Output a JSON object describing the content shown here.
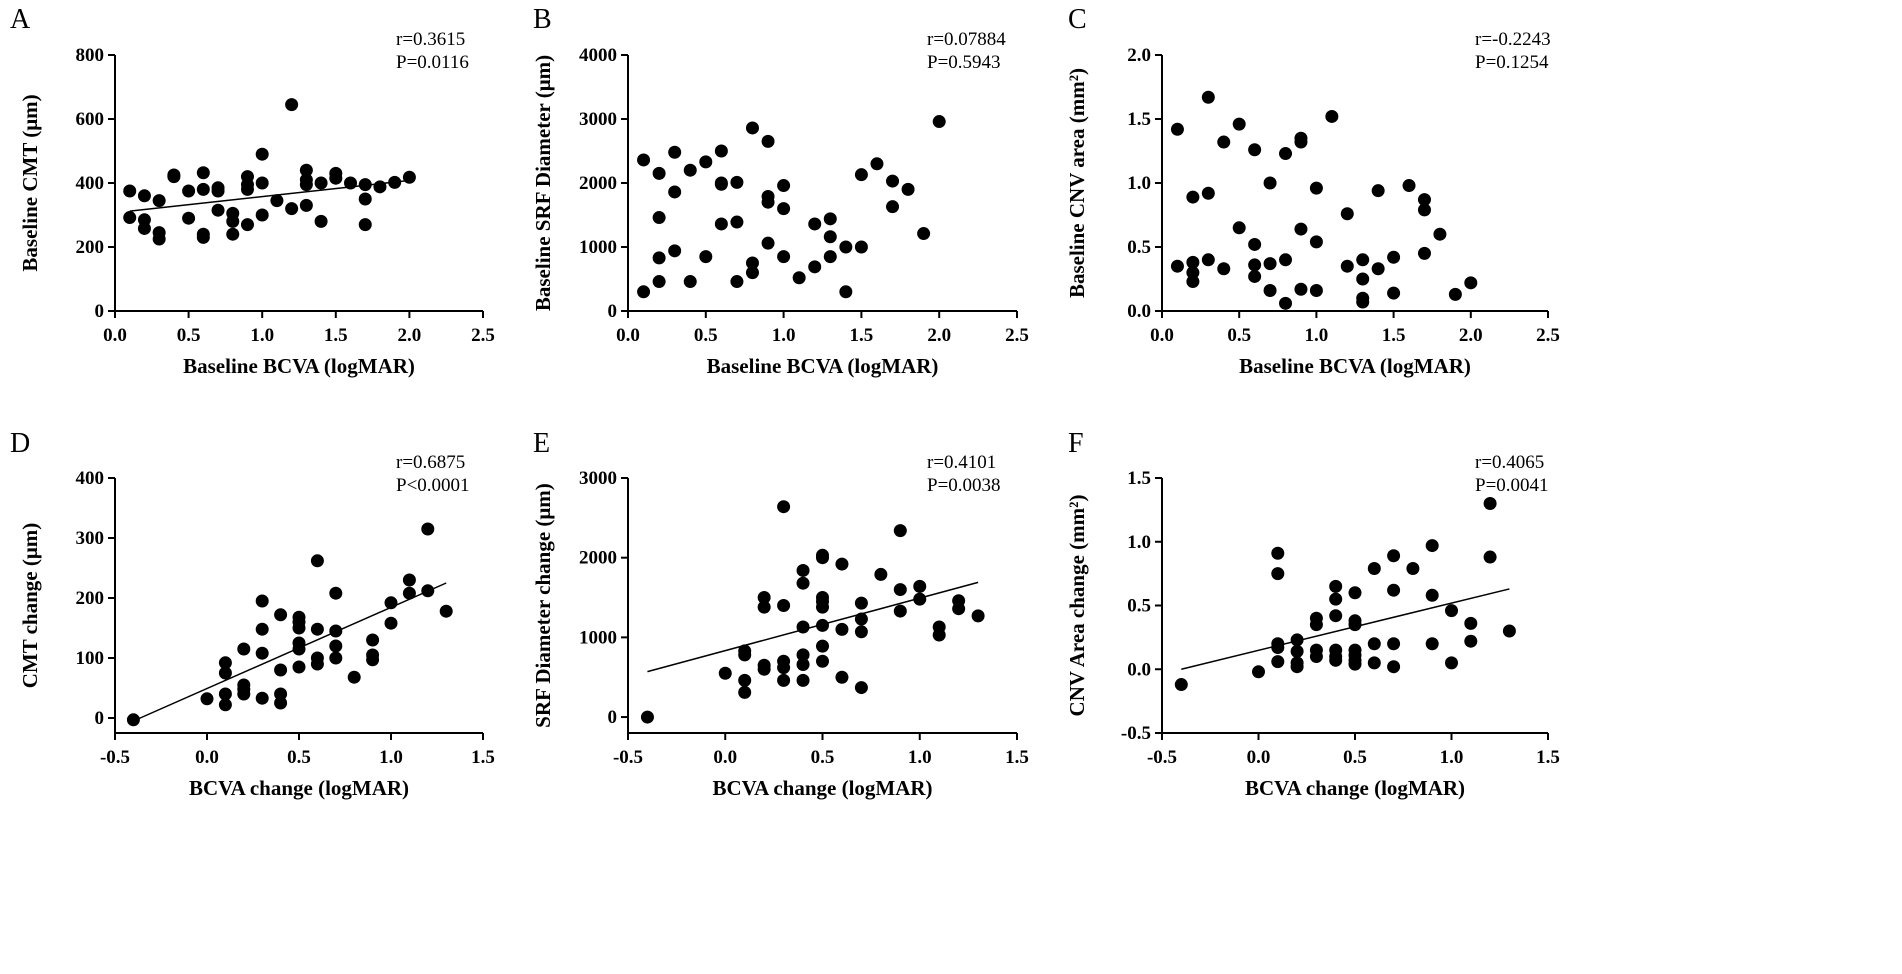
{
  "figure": {
    "panels": [
      "A",
      "B",
      "C",
      "D",
      "E",
      "F"
    ]
  },
  "chart_data": [
    {
      "panel": "A",
      "type": "scatter",
      "xlabel": "Baseline BCVA (logMAR)",
      "ylabel": "Baseline CMT (μm)",
      "xlim": [
        0,
        2.5
      ],
      "ylim": [
        0,
        800
      ],
      "xticks": [
        "0.0",
        "0.5",
        "1.0",
        "1.5",
        "2.0",
        "2.5"
      ],
      "yticks": [
        "0",
        "200",
        "400",
        "600",
        "800"
      ],
      "stats": [
        "r=0.3615",
        "P=0.0116"
      ],
      "fit_line": [
        [
          0.1,
          312
        ],
        [
          2.0,
          408
        ]
      ],
      "points": [
        [
          0.1,
          375
        ],
        [
          0.1,
          292
        ],
        [
          0.2,
          360
        ],
        [
          0.2,
          285
        ],
        [
          0.2,
          258
        ],
        [
          0.3,
          345
        ],
        [
          0.3,
          245
        ],
        [
          0.3,
          225
        ],
        [
          0.4,
          425
        ],
        [
          0.4,
          420
        ],
        [
          0.5,
          375
        ],
        [
          0.5,
          290
        ],
        [
          0.6,
          432
        ],
        [
          0.6,
          380
        ],
        [
          0.6,
          240
        ],
        [
          0.6,
          230
        ],
        [
          0.7,
          385
        ],
        [
          0.7,
          375
        ],
        [
          0.7,
          315
        ],
        [
          0.8,
          305
        ],
        [
          0.8,
          280
        ],
        [
          0.8,
          240
        ],
        [
          0.9,
          420
        ],
        [
          0.9,
          395
        ],
        [
          0.9,
          380
        ],
        [
          0.9,
          270
        ],
        [
          1.0,
          490
        ],
        [
          1.0,
          400
        ],
        [
          1.0,
          300
        ],
        [
          1.1,
          345
        ],
        [
          1.2,
          645
        ],
        [
          1.2,
          320
        ],
        [
          1.3,
          440
        ],
        [
          1.3,
          410
        ],
        [
          1.3,
          395
        ],
        [
          1.3,
          330
        ],
        [
          1.4,
          400
        ],
        [
          1.4,
          280
        ],
        [
          1.5,
          430
        ],
        [
          1.5,
          415
        ],
        [
          1.6,
          400
        ],
        [
          1.7,
          395
        ],
        [
          1.7,
          350
        ],
        [
          1.7,
          270
        ],
        [
          1.8,
          388
        ],
        [
          1.9,
          402
        ],
        [
          2.0,
          418
        ]
      ]
    },
    {
      "panel": "B",
      "type": "scatter",
      "xlabel": "Baseline BCVA (logMAR)",
      "ylabel": "Baseline SRF Diameter (μm)",
      "xlim": [
        0,
        2.5
      ],
      "ylim": [
        0,
        4000
      ],
      "xticks": [
        "0.0",
        "0.5",
        "1.0",
        "1.5",
        "2.0",
        "2.5"
      ],
      "yticks": [
        "0",
        "1000",
        "2000",
        "3000",
        "4000"
      ],
      "stats": [
        "r=0.07884",
        "P=0.5943"
      ],
      "fit_line": null,
      "points": [
        [
          0.1,
          2360
        ],
        [
          0.1,
          300
        ],
        [
          0.2,
          2150
        ],
        [
          0.2,
          1460
        ],
        [
          0.2,
          830
        ],
        [
          0.2,
          460
        ],
        [
          0.3,
          2480
        ],
        [
          0.3,
          1860
        ],
        [
          0.3,
          940
        ],
        [
          0.4,
          2200
        ],
        [
          0.4,
          460
        ],
        [
          0.5,
          2330
        ],
        [
          0.5,
          850
        ],
        [
          0.6,
          2500
        ],
        [
          0.6,
          2000
        ],
        [
          0.6,
          1980
        ],
        [
          0.6,
          1360
        ],
        [
          0.7,
          2010
        ],
        [
          0.7,
          1390
        ],
        [
          0.7,
          460
        ],
        [
          0.8,
          2860
        ],
        [
          0.8,
          750
        ],
        [
          0.8,
          600
        ],
        [
          0.9,
          2650
        ],
        [
          0.9,
          1790
        ],
        [
          0.9,
          1700
        ],
        [
          0.9,
          1060
        ],
        [
          1.0,
          1960
        ],
        [
          1.0,
          1600
        ],
        [
          1.0,
          850
        ],
        [
          1.1,
          520
        ],
        [
          1.2,
          1360
        ],
        [
          1.2,
          690
        ],
        [
          1.3,
          1440
        ],
        [
          1.3,
          1160
        ],
        [
          1.3,
          850
        ],
        [
          1.4,
          1000
        ],
        [
          1.4,
          300
        ],
        [
          1.5,
          2130
        ],
        [
          1.5,
          1000
        ],
        [
          1.6,
          2300
        ],
        [
          1.7,
          2030
        ],
        [
          1.7,
          1630
        ],
        [
          1.8,
          1900
        ],
        [
          1.9,
          1210
        ],
        [
          2.0,
          2960
        ]
      ]
    },
    {
      "panel": "C",
      "type": "scatter",
      "xlabel": "Baseline BCVA (logMAR)",
      "ylabel": "Baseline CNV area (mm²)",
      "xlim": [
        0,
        2.5
      ],
      "ylim": [
        0,
        2.0
      ],
      "xticks": [
        "0.0",
        "0.5",
        "1.0",
        "1.5",
        "2.0",
        "2.5"
      ],
      "yticks": [
        "0.0",
        "0.5",
        "1.0",
        "1.5",
        "2.0"
      ],
      "stats": [
        "r=-0.2243",
        "P=0.1254"
      ],
      "fit_line": null,
      "points": [
        [
          0.1,
          1.42
        ],
        [
          0.1,
          0.35
        ],
        [
          0.2,
          0.89
        ],
        [
          0.2,
          0.38
        ],
        [
          0.2,
          0.3
        ],
        [
          0.2,
          0.23
        ],
        [
          0.3,
          1.67
        ],
        [
          0.3,
          0.92
        ],
        [
          0.3,
          0.4
        ],
        [
          0.4,
          1.32
        ],
        [
          0.4,
          0.33
        ],
        [
          0.5,
          1.46
        ],
        [
          0.5,
          0.65
        ],
        [
          0.6,
          1.26
        ],
        [
          0.6,
          0.52
        ],
        [
          0.6,
          0.36
        ],
        [
          0.6,
          0.27
        ],
        [
          0.7,
          1.0
        ],
        [
          0.7,
          0.37
        ],
        [
          0.7,
          0.16
        ],
        [
          0.8,
          1.23
        ],
        [
          0.8,
          0.4
        ],
        [
          0.8,
          0.06
        ],
        [
          0.9,
          1.35
        ],
        [
          0.9,
          1.32
        ],
        [
          0.9,
          0.64
        ],
        [
          0.9,
          0.17
        ],
        [
          1.0,
          0.96
        ],
        [
          1.0,
          0.54
        ],
        [
          1.0,
          0.16
        ],
        [
          1.1,
          1.52
        ],
        [
          1.2,
          0.76
        ],
        [
          1.2,
          0.35
        ],
        [
          1.3,
          0.4
        ],
        [
          1.3,
          0.25
        ],
        [
          1.3,
          0.1
        ],
        [
          1.3,
          0.07
        ],
        [
          1.4,
          0.94
        ],
        [
          1.4,
          0.33
        ],
        [
          1.5,
          0.42
        ],
        [
          1.5,
          0.14
        ],
        [
          1.6,
          0.98
        ],
        [
          1.7,
          0.87
        ],
        [
          1.7,
          0.79
        ],
        [
          1.7,
          0.45
        ],
        [
          1.8,
          0.6
        ],
        [
          1.9,
          0.13
        ],
        [
          2.0,
          0.22
        ]
      ]
    },
    {
      "panel": "D",
      "type": "scatter",
      "xlabel": "BCVA change (logMAR)",
      "ylabel": "CMT change (μm)",
      "xlim": [
        -0.5,
        1.5
      ],
      "ylim": [
        -25,
        400
      ],
      "xticks": [
        "-0.5",
        "0.0",
        "0.5",
        "1.0",
        "1.5"
      ],
      "yticks": [
        "0",
        "100",
        "200",
        "300",
        "400"
      ],
      "ytick_values": [
        0,
        100,
        200,
        300,
        400
      ],
      "stats": [
        "r=0.6875",
        "P<0.0001"
      ],
      "fit_line": [
        [
          -0.4,
          -5
        ],
        [
          1.3,
          225
        ]
      ],
      "points": [
        [
          -0.4,
          -3
        ],
        [
          0.0,
          32
        ],
        [
          0.1,
          92
        ],
        [
          0.1,
          75
        ],
        [
          0.1,
          40
        ],
        [
          0.1,
          22
        ],
        [
          0.2,
          115
        ],
        [
          0.2,
          55
        ],
        [
          0.2,
          48
        ],
        [
          0.2,
          40
        ],
        [
          0.3,
          195
        ],
        [
          0.3,
          148
        ],
        [
          0.3,
          108
        ],
        [
          0.3,
          33
        ],
        [
          0.4,
          172
        ],
        [
          0.4,
          80
        ],
        [
          0.4,
          40
        ],
        [
          0.4,
          25
        ],
        [
          0.5,
          168
        ],
        [
          0.5,
          160
        ],
        [
          0.5,
          150
        ],
        [
          0.5,
          125
        ],
        [
          0.5,
          115
        ],
        [
          0.5,
          85
        ],
        [
          0.6,
          262
        ],
        [
          0.6,
          148
        ],
        [
          0.6,
          100
        ],
        [
          0.6,
          90
        ],
        [
          0.7,
          208
        ],
        [
          0.7,
          145
        ],
        [
          0.7,
          120
        ],
        [
          0.7,
          100
        ],
        [
          0.8,
          68
        ],
        [
          0.9,
          130
        ],
        [
          0.9,
          105
        ],
        [
          0.9,
          97
        ],
        [
          1.0,
          192
        ],
        [
          1.0,
          158
        ],
        [
          1.1,
          230
        ],
        [
          1.1,
          208
        ],
        [
          1.2,
          315
        ],
        [
          1.2,
          212
        ],
        [
          1.3,
          178
        ]
      ]
    },
    {
      "panel": "E",
      "type": "scatter",
      "xlabel": "BCVA change (logMAR)",
      "ylabel": "SRF Diameter change (μm)",
      "xlim": [
        -0.5,
        1.5
      ],
      "ylim": [
        -200,
        3000
      ],
      "xticks": [
        "-0.5",
        "0.0",
        "0.5",
        "1.0",
        "1.5"
      ],
      "yticks": [
        "0",
        "1000",
        "2000",
        "3000"
      ],
      "ytick_values": [
        0,
        1000,
        2000,
        3000
      ],
      "stats": [
        "r=0.4101",
        "P=0.0038"
      ],
      "fit_line": [
        [
          -0.4,
          570
        ],
        [
          1.3,
          1690
        ]
      ],
      "points": [
        [
          -0.4,
          0
        ],
        [
          0.0,
          550
        ],
        [
          0.1,
          830
        ],
        [
          0.1,
          780
        ],
        [
          0.1,
          460
        ],
        [
          0.1,
          310
        ],
        [
          0.2,
          1500
        ],
        [
          0.2,
          1380
        ],
        [
          0.2,
          650
        ],
        [
          0.2,
          600
        ],
        [
          0.3,
          2640
        ],
        [
          0.3,
          1400
        ],
        [
          0.3,
          700
        ],
        [
          0.3,
          620
        ],
        [
          0.3,
          460
        ],
        [
          0.4,
          1840
        ],
        [
          0.4,
          1680
        ],
        [
          0.4,
          1130
        ],
        [
          0.4,
          780
        ],
        [
          0.4,
          660
        ],
        [
          0.4,
          460
        ],
        [
          0.5,
          2030
        ],
        [
          0.5,
          2000
        ],
        [
          0.5,
          1500
        ],
        [
          0.5,
          1450
        ],
        [
          0.5,
          1380
        ],
        [
          0.5,
          1150
        ],
        [
          0.5,
          890
        ],
        [
          0.5,
          700
        ],
        [
          0.6,
          1920
        ],
        [
          0.6,
          1100
        ],
        [
          0.6,
          500
        ],
        [
          0.7,
          1430
        ],
        [
          0.7,
          1230
        ],
        [
          0.7,
          1070
        ],
        [
          0.7,
          370
        ],
        [
          0.8,
          1790
        ],
        [
          0.9,
          2340
        ],
        [
          0.9,
          1600
        ],
        [
          0.9,
          1330
        ],
        [
          1.0,
          1640
        ],
        [
          1.0,
          1480
        ],
        [
          1.1,
          1130
        ],
        [
          1.1,
          1030
        ],
        [
          1.2,
          1460
        ],
        [
          1.2,
          1360
        ],
        [
          1.3,
          1270
        ]
      ]
    },
    {
      "panel": "F",
      "type": "scatter",
      "xlabel": "BCVA change (logMAR)",
      "ylabel": "CNV Area change (mm²)",
      "xlim": [
        -0.5,
        1.5
      ],
      "ylim": [
        -0.5,
        1.5
      ],
      "xticks": [
        "-0.5",
        "0.0",
        "0.5",
        "1.0",
        "1.5"
      ],
      "yticks": [
        "-0.5",
        "0.0",
        "0.5",
        "1.0",
        "1.5"
      ],
      "stats": [
        "r=0.4065",
        "P=0.0041"
      ],
      "fit_line": [
        [
          -0.4,
          0.0
        ],
        [
          1.3,
          0.63
        ]
      ],
      "points": [
        [
          -0.4,
          -0.12
        ],
        [
          0.0,
          -0.02
        ],
        [
          0.1,
          0.91
        ],
        [
          0.1,
          0.75
        ],
        [
          0.1,
          0.2
        ],
        [
          0.1,
          0.17
        ],
        [
          0.1,
          0.06
        ],
        [
          0.2,
          0.23
        ],
        [
          0.2,
          0.14
        ],
        [
          0.2,
          0.05
        ],
        [
          0.2,
          0.02
        ],
        [
          0.3,
          0.4
        ],
        [
          0.3,
          0.35
        ],
        [
          0.3,
          0.15
        ],
        [
          0.3,
          0.1
        ],
        [
          0.4,
          0.65
        ],
        [
          0.4,
          0.55
        ],
        [
          0.4,
          0.42
        ],
        [
          0.4,
          0.15
        ],
        [
          0.4,
          0.1
        ],
        [
          0.4,
          0.07
        ],
        [
          0.5,
          0.6
        ],
        [
          0.5,
          0.38
        ],
        [
          0.5,
          0.35
        ],
        [
          0.5,
          0.15
        ],
        [
          0.5,
          0.11
        ],
        [
          0.5,
          0.07
        ],
        [
          0.5,
          0.04
        ],
        [
          0.6,
          0.79
        ],
        [
          0.6,
          0.2
        ],
        [
          0.6,
          0.05
        ],
        [
          0.7,
          0.89
        ],
        [
          0.7,
          0.62
        ],
        [
          0.7,
          0.2
        ],
        [
          0.7,
          0.02
        ],
        [
          0.8,
          0.79
        ],
        [
          0.9,
          0.97
        ],
        [
          0.9,
          0.58
        ],
        [
          0.9,
          0.2
        ],
        [
          1.0,
          0.46
        ],
        [
          1.0,
          0.05
        ],
        [
          1.1,
          0.36
        ],
        [
          1.1,
          0.22
        ],
        [
          1.2,
          1.3
        ],
        [
          1.2,
          0.88
        ],
        [
          1.3,
          0.3
        ]
      ]
    }
  ]
}
